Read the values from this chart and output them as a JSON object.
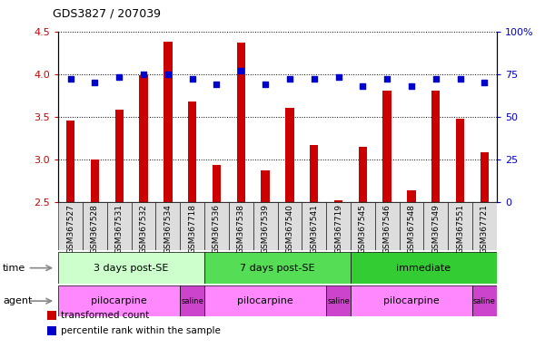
{
  "title": "GDS3827 / 207039",
  "samples": [
    "GSM367527",
    "GSM367528",
    "GSM367531",
    "GSM367532",
    "GSM367534",
    "GSM367718",
    "GSM367536",
    "GSM367538",
    "GSM367539",
    "GSM367540",
    "GSM367541",
    "GSM367719",
    "GSM367545",
    "GSM367546",
    "GSM367548",
    "GSM367549",
    "GSM367551",
    "GSM367721"
  ],
  "transformed_count": [
    3.45,
    3.0,
    3.58,
    3.98,
    4.38,
    3.68,
    2.93,
    4.37,
    2.87,
    3.6,
    3.17,
    2.52,
    3.15,
    3.8,
    2.63,
    3.8,
    3.48,
    3.08
  ],
  "percentile_rank": [
    72,
    70,
    73,
    75,
    75,
    72,
    69,
    77,
    69,
    72,
    72,
    73,
    68,
    72,
    68,
    72,
    72,
    70
  ],
  "ylim_left": [
    2.5,
    4.5
  ],
  "ylim_right": [
    0,
    100
  ],
  "yticks_left": [
    2.5,
    3.0,
    3.5,
    4.0,
    4.5
  ],
  "yticks_right": [
    0,
    25,
    50,
    75,
    100
  ],
  "bar_color": "#cc0000",
  "dot_color": "#0000cc",
  "grid_color": "#000000",
  "time_groups": [
    {
      "label": "3 days post-SE",
      "start": 0,
      "end": 5,
      "color": "#ccffcc"
    },
    {
      "label": "7 days post-SE",
      "start": 6,
      "end": 11,
      "color": "#55dd55"
    },
    {
      "label": "immediate",
      "start": 12,
      "end": 17,
      "color": "#33cc33"
    }
  ],
  "agent_groups": [
    {
      "label": "pilocarpine",
      "start": 0,
      "end": 4,
      "color": "#ff88ff"
    },
    {
      "label": "saline",
      "start": 5,
      "end": 5,
      "color": "#cc44cc"
    },
    {
      "label": "pilocarpine",
      "start": 6,
      "end": 10,
      "color": "#ff88ff"
    },
    {
      "label": "saline",
      "start": 11,
      "end": 11,
      "color": "#cc44cc"
    },
    {
      "label": "pilocarpine",
      "start": 12,
      "end": 16,
      "color": "#ff88ff"
    },
    {
      "label": "saline",
      "start": 17,
      "end": 17,
      "color": "#cc44cc"
    }
  ],
  "legend_items": [
    {
      "label": "transformed count",
      "color": "#cc0000"
    },
    {
      "label": "percentile rank within the sample",
      "color": "#0000cc"
    }
  ],
  "sample_label_fontsize": 6.5,
  "axis_tick_color_left": "#cc0000",
  "axis_tick_color_right": "#0000cc",
  "label_cell_color": "#dddddd",
  "saline_font_color": "#000000",
  "time_label_color": "#000000",
  "agent_label_color": "#000000"
}
